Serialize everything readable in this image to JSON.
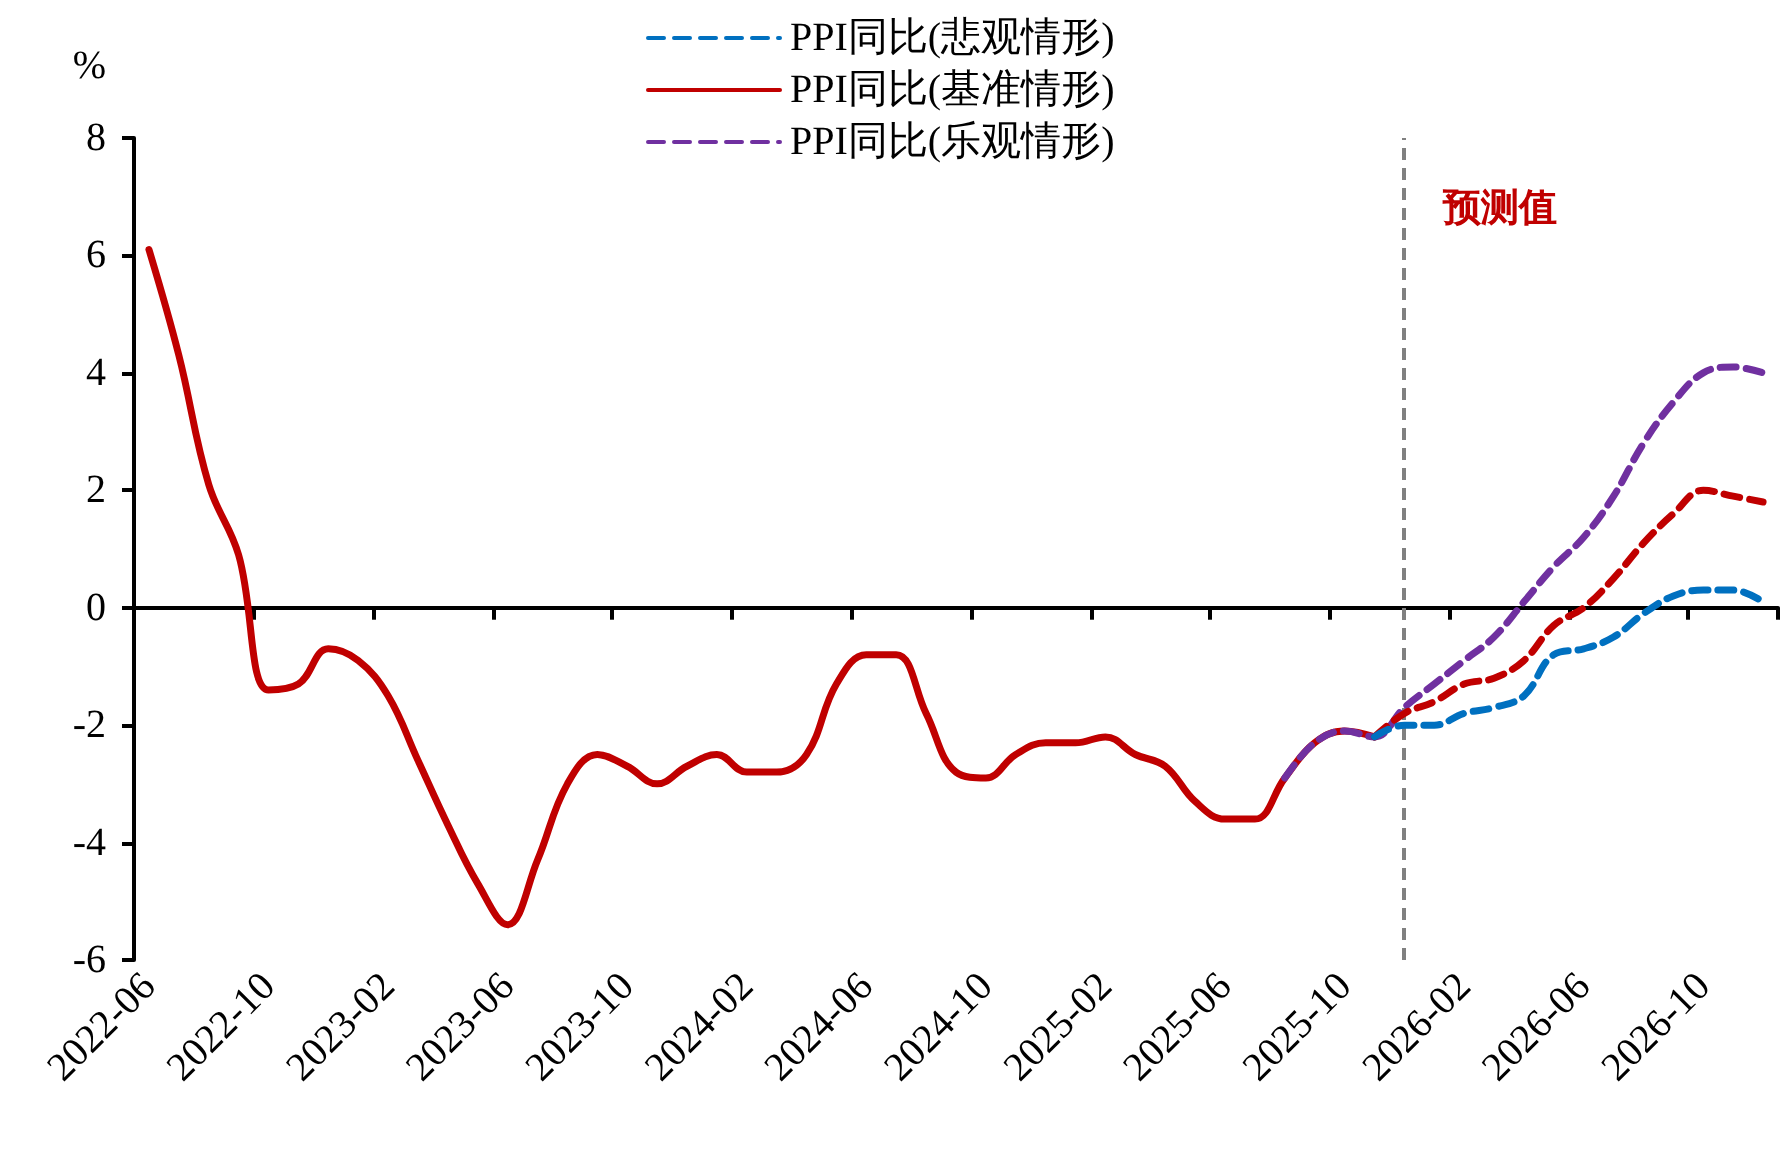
{
  "chart_data": {
    "type": "line",
    "ylabel": "%",
    "categories": [
      "2022-06",
      null,
      null,
      null,
      "2022-10",
      null,
      null,
      null,
      "2023-02",
      null,
      null,
      null,
      "2023-06",
      null,
      null,
      null,
      "2023-10",
      null,
      null,
      null,
      "2024-02",
      null,
      null,
      null,
      "2024-06",
      null,
      null,
      null,
      "2024-10",
      null,
      null,
      null,
      "2025-02",
      null,
      null,
      null,
      "2025-06",
      null,
      null,
      null,
      "2025-10",
      null,
      null,
      null,
      "2026-02",
      null,
      null,
      null,
      "2026-06",
      null,
      null,
      null,
      "2026-10",
      null,
      null
    ],
    "series": [
      {
        "name": "PPI同比(悲观情形)",
        "color": "#0070c0",
        "line_style": "dashed",
        "values": [
          null,
          null,
          null,
          null,
          null,
          null,
          null,
          null,
          null,
          null,
          null,
          null,
          null,
          null,
          null,
          null,
          null,
          null,
          null,
          null,
          null,
          null,
          null,
          null,
          null,
          null,
          null,
          null,
          null,
          null,
          null,
          null,
          null,
          null,
          null,
          null,
          null,
          null,
          null,
          null,
          null,
          -2.2,
          -2.0,
          -2.0,
          -1.8,
          -1.7,
          -1.5,
          -0.8,
          -0.7,
          -0.5,
          -0.1,
          0.2,
          0.3,
          0.3,
          0.1
        ]
      },
      {
        "name": "PPI同比(基准情形)",
        "color": "#c00000",
        "line_style": "solid",
        "values": [
          6.1,
          4.3,
          2.1,
          0.9,
          -1.4,
          -1.3,
          -0.7,
          -0.9,
          -1.5,
          -2.6,
          -3.7,
          -4.7,
          -5.4,
          -4.3,
          -3.0,
          -2.5,
          -2.7,
          -3.0,
          -2.7,
          -2.5,
          -2.8,
          -2.8,
          -2.5,
          -1.3,
          -0.8,
          -0.8,
          -1.8,
          -2.8,
          -2.9,
          -2.5,
          -2.3,
          -2.3,
          -2.2,
          -2.5,
          -2.7,
          -3.3,
          -3.6,
          -3.6,
          -2.9,
          -2.3,
          -2.1,
          -2.2,
          null,
          null,
          null,
          null,
          null,
          null,
          null,
          null,
          null,
          null,
          null,
          null,
          null
        ]
      },
      {
        "color": "#c00000",
        "line_style": "dashed",
        "values": [
          null,
          null,
          null,
          null,
          null,
          null,
          null,
          null,
          null,
          null,
          null,
          null,
          null,
          null,
          null,
          null,
          null,
          null,
          null,
          null,
          null,
          null,
          null,
          null,
          null,
          null,
          null,
          null,
          null,
          null,
          null,
          null,
          null,
          null,
          null,
          null,
          null,
          null,
          null,
          null,
          null,
          -2.2,
          -1.8,
          -1.6,
          -1.3,
          -1.2,
          -0.9,
          -0.3,
          0.0,
          0.5,
          1.1,
          1.6,
          2.0,
          1.9,
          1.8
        ]
      },
      {
        "name": "PPI同比(乐观情形)",
        "color": "#7030a0",
        "line_style": "dashed",
        "values": [
          null,
          null,
          null,
          null,
          null,
          null,
          null,
          null,
          null,
          null,
          null,
          null,
          null,
          null,
          null,
          null,
          null,
          null,
          null,
          null,
          null,
          null,
          null,
          null,
          null,
          null,
          null,
          null,
          null,
          null,
          null,
          null,
          null,
          null,
          null,
          null,
          null,
          null,
          -2.9,
          -2.3,
          -2.1,
          -2.2,
          -1.7,
          -1.3,
          -0.9,
          -0.5,
          0.1,
          0.7,
          1.2,
          1.9,
          2.8,
          3.5,
          4.0,
          4.1,
          4.0
        ]
      }
    ],
    "ylim": [
      -6,
      8
    ],
    "yticks": [
      -6,
      -4,
      -2,
      0,
      2,
      4,
      6,
      8
    ],
    "annotations": [
      "预测值"
    ],
    "grid": false,
    "legend": "top",
    "marker": "none"
  }
}
